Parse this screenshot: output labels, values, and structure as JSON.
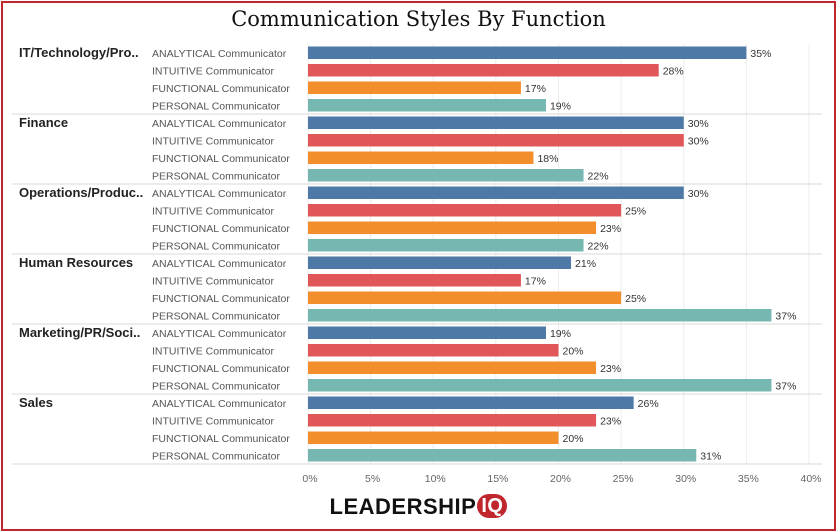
{
  "chart_data": {
    "type": "bar",
    "orientation": "horizontal",
    "title": "Communication Styles By Function",
    "groups": [
      "IT/Technology/Pro..",
      "Finance",
      "Operations/Produc..",
      "Human Resources",
      "Marketing/PR/Soci..",
      "Sales"
    ],
    "categories": [
      "ANALYTICAL Communicator",
      "INTUITIVE Communicator",
      "FUNCTIONAL Communicator",
      "PERSONAL Communicator"
    ],
    "category_colors": [
      "#4e79a7",
      "#e15759",
      "#f28e2b",
      "#76b7b2"
    ],
    "values": [
      [
        35,
        28,
        17,
        19
      ],
      [
        30,
        30,
        18,
        22
      ],
      [
        30,
        25,
        23,
        22
      ],
      [
        21,
        17,
        25,
        37
      ],
      [
        19,
        20,
        23,
        37
      ],
      [
        26,
        23,
        20,
        31
      ]
    ],
    "value_suffix": "%",
    "xlim": [
      0,
      40
    ],
    "x_ticks": [
      "0%",
      "5%",
      "10%",
      "15%",
      "20%",
      "25%",
      "30%",
      "35%",
      "40%"
    ],
    "grid": true
  },
  "logo": {
    "text": "LEADERSHIP",
    "badge": "IQ"
  }
}
